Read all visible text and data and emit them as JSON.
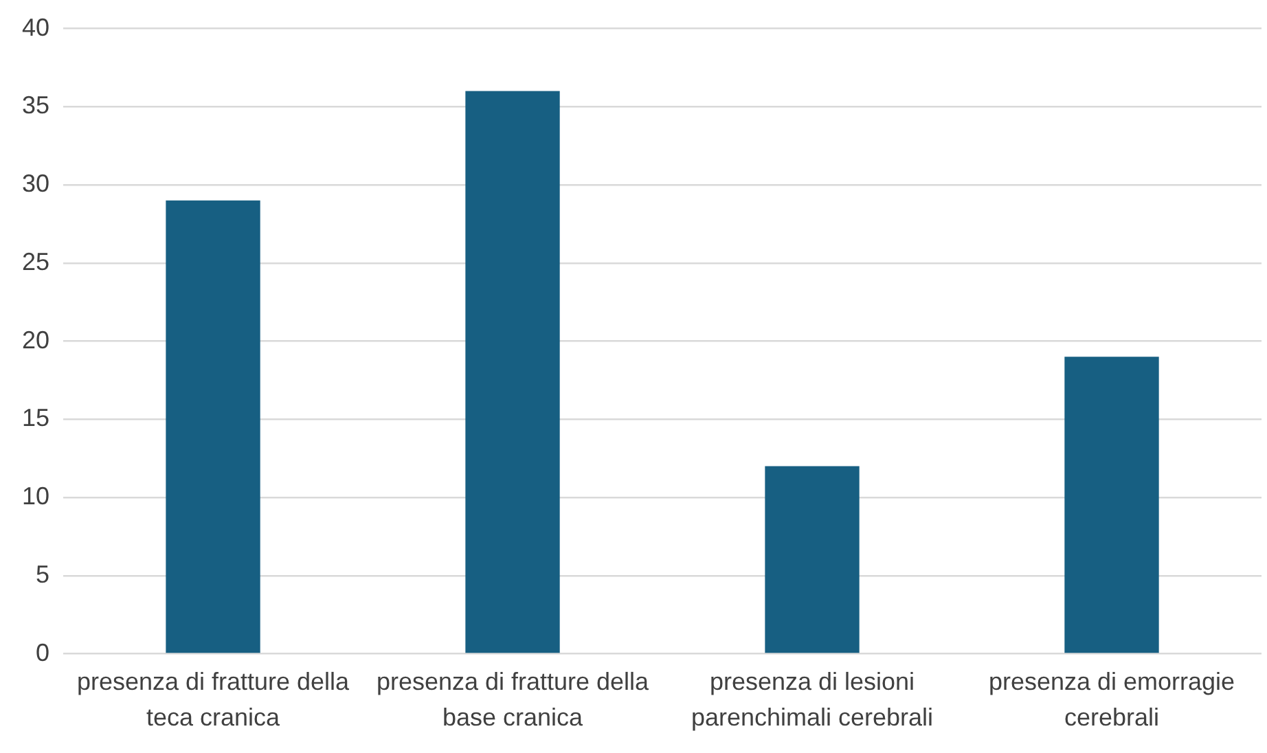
{
  "chart_data": {
    "type": "bar",
    "categories": [
      "presenza di fratture della teca cranica",
      "presenza di fratture della base cranica",
      "presenza di lesioni parenchimali cerebrali",
      "presenza di emorragie cerebrali"
    ],
    "values": [
      29,
      36,
      12,
      19
    ],
    "color": "#175f82",
    "ylim": [
      0,
      40
    ],
    "yticks": [
      0,
      5,
      10,
      15,
      20,
      25,
      30,
      35,
      40
    ],
    "grid": "y",
    "legend": false
  }
}
